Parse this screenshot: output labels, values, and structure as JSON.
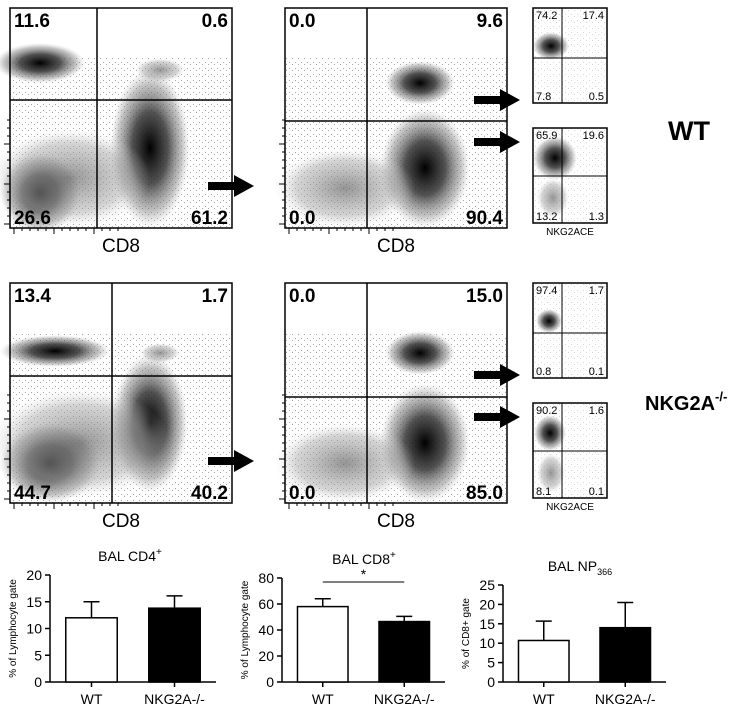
{
  "flow_rows": [
    {
      "label": "WT",
      "plots": [
        {
          "quadrants": [
            "11.6",
            "0.6",
            "26.6",
            "61.2"
          ],
          "axis_label": "CD8"
        },
        {
          "quadrants": [
            "0.0",
            "9.6",
            "0.0",
            "90.4"
          ],
          "axis_label": "CD8"
        }
      ],
      "subplots": [
        {
          "quadrants": [
            "74.2",
            "17.4",
            "7.8",
            "0.5"
          ]
        },
        {
          "quadrants": [
            "65.9",
            "19.6",
            "13.2",
            "1.3"
          ],
          "axis_label": "NKG2ACE"
        }
      ]
    },
    {
      "label": "NKG2A",
      "label_sup": "-/-",
      "plots": [
        {
          "quadrants": [
            "13.4",
            "1.7",
            "44.7",
            "40.2"
          ],
          "axis_label": "CD8"
        },
        {
          "quadrants": [
            "0.0",
            "15.0",
            "0.0",
            "85.0"
          ],
          "axis_label": "CD8"
        }
      ],
      "subplots": [
        {
          "quadrants": [
            "97.4",
            "1.7",
            "0.8",
            "0.1"
          ]
        },
        {
          "quadrants": [
            "90.2",
            "1.6",
            "8.1",
            "0.1"
          ],
          "axis_label": "NKG2ACE"
        }
      ]
    }
  ],
  "chart_data": [
    {
      "type": "bar",
      "title": "BAL CD4",
      "title_sup": "+",
      "y_label": "% of Lymphocyte gate",
      "categories": [
        "WT",
        "NKG2A-/-"
      ],
      "values": [
        12,
        13.8
      ],
      "errors": [
        3,
        2.3
      ],
      "colors": [
        "#ffffff",
        "#000000"
      ],
      "ylim": [
        0,
        20
      ],
      "yticks": [
        0,
        5,
        10,
        15,
        20
      ]
    },
    {
      "type": "bar",
      "title": "BAL CD8",
      "title_sup": "+",
      "y_label": "% of Lymphocyte gate",
      "categories": [
        "WT",
        "NKG2A-/-"
      ],
      "values": [
        58,
        46.5
      ],
      "errors": [
        6,
        4
      ],
      "colors": [
        "#ffffff",
        "#000000"
      ],
      "ylim": [
        0,
        80
      ],
      "yticks": [
        0,
        20,
        40,
        60,
        80
      ],
      "annotation": "*"
    },
    {
      "type": "bar",
      "title": "BAL NP",
      "title_sub": "366",
      "y_label": "% of CD8+ gate",
      "categories": [
        "WT",
        "NKG2A-/-"
      ],
      "values": [
        10.7,
        14
      ],
      "errors": [
        5,
        6.5
      ],
      "colors": [
        "#ffffff",
        "#000000"
      ],
      "ylim": [
        0,
        25
      ],
      "yticks": [
        0,
        5,
        10,
        15,
        20,
        25
      ]
    }
  ]
}
